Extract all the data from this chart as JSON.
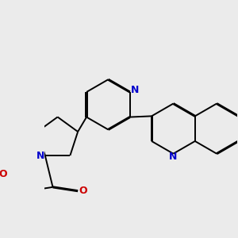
{
  "background_color": "#ebebeb",
  "bond_color": "#000000",
  "N_color": "#0000cc",
  "O_color": "#cc0000",
  "bond_width": 1.4,
  "dbo": 0.012,
  "figsize": [
    3.0,
    3.0
  ],
  "dpi": 100,
  "xlim": [
    -0.5,
    4.5
  ],
  "ylim": [
    -2.5,
    2.5
  ]
}
